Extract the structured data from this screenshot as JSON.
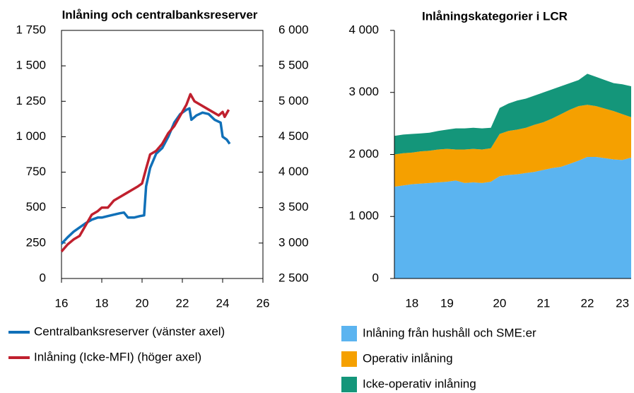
{
  "chart_data": [
    {
      "type": "line",
      "title": "Inlåning och centralbanksreserver",
      "xlim": [
        16,
        26
      ],
      "xticks": [
        16,
        18,
        20,
        22,
        24,
        26
      ],
      "ylim": [
        0,
        1750
      ],
      "yticks": [
        0,
        250,
        500,
        750,
        {
          "value": 1000,
          "label": "1 000"
        },
        {
          "value": 1250,
          "label": "1 250"
        },
        {
          "value": 1500,
          "label": "1 500"
        },
        {
          "value": 1750,
          "label": "1 750"
        }
      ],
      "y2lim": [
        2500,
        6000
      ],
      "y2ticks": [
        {
          "value": 2500,
          "label": "2 500"
        },
        {
          "value": 3000,
          "label": "3 000"
        },
        {
          "value": 3500,
          "label": "3 500"
        },
        {
          "value": 4000,
          "label": "4 000"
        },
        {
          "value": 4500,
          "label": "4 500"
        },
        {
          "value": 5000,
          "label": "5 000"
        },
        {
          "value": 5500,
          "label": "5 500"
        },
        {
          "value": 6000,
          "label": "6 000"
        }
      ],
      "legend": "bottom",
      "series": [
        {
          "name": "Centralbanksreserver (vänster axel)",
          "color": "#1070b8",
          "x": [
            16.0,
            16.3,
            16.6,
            16.9,
            17.2,
            17.5,
            17.8,
            18.0,
            18.3,
            18.6,
            18.9,
            19.1,
            19.3,
            19.6,
            19.9,
            20.1,
            20.2,
            20.4,
            20.7,
            21.0,
            21.3,
            21.6,
            21.9,
            22.2,
            22.35,
            22.45,
            22.7,
            23.0,
            23.3,
            23.6,
            23.9,
            24.0,
            24.2,
            24.35
          ],
          "values": [
            245,
            290,
            330,
            360,
            390,
            415,
            430,
            430,
            440,
            450,
            460,
            465,
            430,
            430,
            440,
            445,
            650,
            780,
            880,
            920,
            1000,
            1100,
            1160,
            1190,
            1200,
            1120,
            1150,
            1170,
            1160,
            1120,
            1100,
            1000,
            980,
            950
          ]
        },
        {
          "name": "Inlåning (Icke-MFI) (höger axel)",
          "color": "#c0202e",
          "axis": "y2",
          "x": [
            16.0,
            16.3,
            16.6,
            16.9,
            17.2,
            17.5,
            17.8,
            18.0,
            18.3,
            18.6,
            18.9,
            19.2,
            19.5,
            19.8,
            20.0,
            20.2,
            20.4,
            20.7,
            21.0,
            21.3,
            21.6,
            22.0,
            22.2,
            22.4,
            22.6,
            22.9,
            23.2,
            23.5,
            23.8,
            24.0,
            24.1,
            24.3
          ],
          "values": [
            2880,
            2980,
            3050,
            3100,
            3250,
            3400,
            3450,
            3500,
            3500,
            3600,
            3650,
            3700,
            3750,
            3800,
            3840,
            4050,
            4250,
            4300,
            4400,
            4550,
            4650,
            4850,
            4950,
            5100,
            5000,
            4950,
            4900,
            4850,
            4800,
            4850,
            4780,
            4880
          ]
        }
      ]
    },
    {
      "type": "area",
      "title": "Inlåningskategorier i LCR",
      "categories": [
        null,
        null,
        "18",
        null,
        null,
        null,
        "19",
        null,
        null,
        null,
        null,
        null,
        "20",
        null,
        null,
        null,
        null,
        "21",
        null,
        null,
        null,
        null,
        "22",
        null,
        null,
        null,
        "23",
        null
      ],
      "ylim": [
        0,
        4000
      ],
      "yticks": [
        0,
        {
          "value": 1000,
          "label": "1 000"
        },
        {
          "value": 2000,
          "label": "2 000"
        },
        {
          "value": 3000,
          "label": "3 000"
        },
        {
          "value": 4000,
          "label": "4 000"
        }
      ],
      "stacked": true,
      "legend": "bottom",
      "series": [
        {
          "name": "Inlåning från hushåll och SME:er",
          "color": "#5bb4f0",
          "values": [
            1480,
            1500,
            1520,
            1530,
            1540,
            1550,
            1560,
            1580,
            1540,
            1550,
            1540,
            1560,
            1650,
            1670,
            1680,
            1700,
            1720,
            1750,
            1780,
            1800,
            1850,
            1900,
            1960,
            1960,
            1940,
            1920,
            1910,
            1950
          ]
        },
        {
          "name": "Operativ inlåning",
          "color": "#f5a000",
          "values": [
            520,
            520,
            510,
            520,
            520,
            530,
            530,
            500,
            540,
            540,
            540,
            540,
            680,
            710,
            720,
            730,
            760,
            770,
            800,
            850,
            870,
            880,
            840,
            820,
            800,
            780,
            740,
            650
          ]
        },
        {
          "name": "Icke-operativ inlåning",
          "color": "#14967a",
          "values": [
            300,
            300,
            300,
            290,
            290,
            300,
            310,
            340,
            340,
            340,
            340,
            330,
            420,
            440,
            470,
            470,
            470,
            480,
            470,
            450,
            430,
            420,
            500,
            470,
            460,
            450,
            480,
            500
          ]
        }
      ]
    }
  ]
}
